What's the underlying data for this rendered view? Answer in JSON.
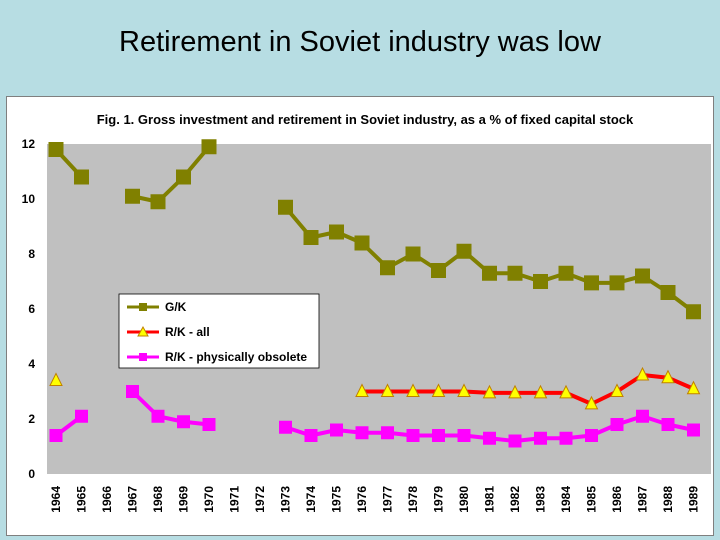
{
  "slide": {
    "title": "Retirement in Soviet industry was low"
  },
  "colors": {
    "background": "#b7dde3",
    "plot_area": "#c0c0c0",
    "gk": "#808000",
    "rk_all_line": "#ff0000",
    "rk_all_marker": "#ffff00",
    "rk_obsolete": "#ff00ff"
  },
  "chart_data": {
    "type": "line",
    "title": "Fig. 1. Gross investment and retirement in Soviet industry, as a % of fixed capital stock",
    "xlabel": "",
    "ylabel": "",
    "ylim": [
      0,
      12
    ],
    "yticks": [
      0,
      2,
      4,
      6,
      8,
      10,
      12
    ],
    "grid": false,
    "legend_position": "middle-left",
    "categories": [
      "1964",
      "1965",
      "1966",
      "1967",
      "1968",
      "1969",
      "1970",
      "1971",
      "1972",
      "1973",
      "1974",
      "1975",
      "1976",
      "1977",
      "1978",
      "1979",
      "1980",
      "1981",
      "1982",
      "1983",
      "1984",
      "1985",
      "1986",
      "1987",
      "1988",
      "1989"
    ],
    "series": [
      {
        "name": "G/K",
        "marker": "square",
        "values": [
          11.8,
          10.8,
          null,
          10.1,
          9.9,
          10.8,
          11.9,
          null,
          null,
          9.7,
          8.6,
          8.8,
          8.4,
          7.5,
          8.0,
          7.4,
          8.1,
          7.3,
          7.3,
          7.0,
          7.3,
          6.95,
          6.95,
          7.2,
          6.6,
          5.9
        ]
      },
      {
        "name": "R/K - all",
        "marker": "triangle",
        "values": [
          3.4,
          null,
          null,
          null,
          null,
          null,
          null,
          null,
          null,
          null,
          null,
          null,
          3.0,
          3.0,
          3.0,
          3.0,
          3.0,
          2.95,
          2.95,
          2.95,
          2.95,
          2.55,
          3.0,
          3.6,
          3.5,
          3.1
        ]
      },
      {
        "name": "R/K - physically obsolete",
        "marker": "square",
        "values": [
          1.4,
          2.1,
          null,
          3.0,
          2.1,
          1.9,
          1.8,
          null,
          null,
          1.7,
          1.4,
          1.6,
          1.5,
          1.5,
          1.4,
          1.4,
          1.4,
          1.3,
          1.2,
          1.3,
          1.3,
          1.4,
          1.8,
          2.1,
          1.8,
          1.6
        ]
      }
    ]
  }
}
